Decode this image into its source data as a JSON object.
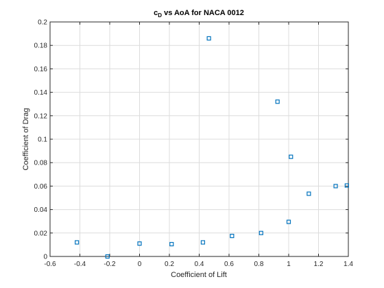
{
  "chart_data": {
    "type": "scatter",
    "title_main": "c",
    "title_sub": "D",
    "title_rest": " vs AoA for NACA 0012",
    "xlabel": "Coefficient of Lift",
    "ylabel": "Coefficient of Drag",
    "xlim": [
      -0.6,
      1.4
    ],
    "ylim": [
      0,
      0.2
    ],
    "xticks": [
      "-0.6",
      "-0.4",
      "-0.2",
      "0",
      "0.2",
      "0.4",
      "0.6",
      "0.8",
      "1",
      "1.2",
      "1.4"
    ],
    "yticks": [
      "0",
      "0.02",
      "0.04",
      "0.06",
      "0.08",
      "0.1",
      "0.12",
      "0.14",
      "0.16",
      "0.18",
      "0.2"
    ],
    "grid": true,
    "marker": "square",
    "marker_color": "#0072bd",
    "series": [
      {
        "x": [
          -0.42,
          -0.215,
          0.0,
          0.215,
          0.425,
          0.465,
          0.62,
          0.815,
          0.925,
          1.0,
          1.015,
          1.135,
          1.315,
          1.39
        ],
        "y": [
          0.012,
          0.0,
          0.011,
          0.0105,
          0.012,
          0.186,
          0.0175,
          0.02,
          0.132,
          0.0295,
          0.085,
          0.0535,
          0.06,
          0.0605
        ]
      }
    ]
  }
}
